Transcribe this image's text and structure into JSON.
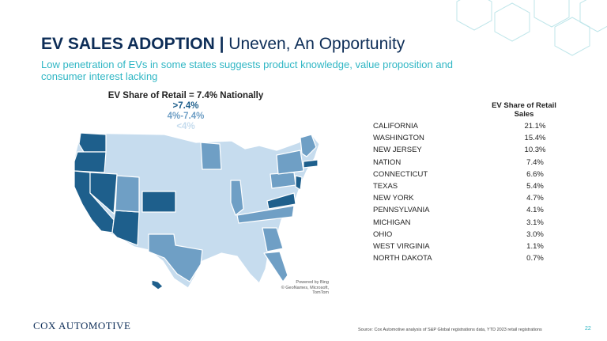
{
  "slide": {
    "title_bold": "EV SALES ADOPTION |",
    "title_rest": " Uneven, An Opportunity",
    "subtitle": "Low penetration of EVs in some states suggests product knowledge, value proposition and consumer interest lacking",
    "page_number": "22",
    "source": "Source: Cox Automotive analysis of S&P Global registrations data, YTD 2023 retail registrations",
    "logo_text": "COX AUTOMOTIVE"
  },
  "map": {
    "legend_title": "EV Share of Retail = 7.4% Nationally",
    "legend_high": ">7.4%",
    "legend_mid": "4%-7.4%",
    "legend_low": "<4%",
    "attribution_line1": "Powered by Bing",
    "attribution_line2": "© GeoNames, Microsoft, TomTom",
    "colors": {
      "high": "#1e5f8c",
      "mid": "#6f9fc5",
      "low": "#c6dcee"
    }
  },
  "table": {
    "header": "EV Share of Retail Sales",
    "rows": [
      {
        "state": "CALIFORNIA",
        "value": "21.1%"
      },
      {
        "state": "WASHINGTON",
        "value": "15.4%"
      },
      {
        "state": "NEW JERSEY",
        "value": "10.3%"
      },
      {
        "state": "NATION",
        "value": "7.4%"
      },
      {
        "state": "CONNECTICUT",
        "value": "6.6%"
      },
      {
        "state": "TEXAS",
        "value": "5.4%"
      },
      {
        "state": "NEW YORK",
        "value": "4.7%"
      },
      {
        "state": "PENNSYLVANIA",
        "value": "4.1%"
      },
      {
        "state": "MICHIGAN",
        "value": "3.1%"
      },
      {
        "state": "OHIO",
        "value": "3.0%"
      },
      {
        "state": "WEST VIRGINIA",
        "value": "1.1%"
      },
      {
        "state": "NORTH DAKOTA",
        "value": "0.7%"
      }
    ]
  }
}
